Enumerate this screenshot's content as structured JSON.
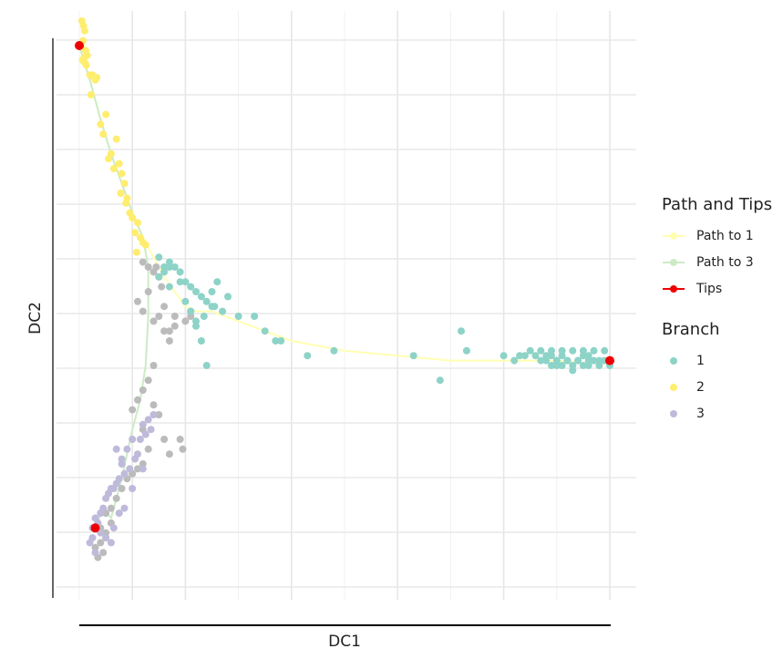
{
  "chart_data": {
    "type": "scatter",
    "xlabel": "DC1",
    "ylabel": "DC2",
    "xlim": [
      -0.05,
      1.05
    ],
    "ylim": [
      -0.05,
      1.05
    ],
    "grid": true,
    "legend_placement": "right",
    "legends": [
      {
        "title": "Path and Tips",
        "items": [
          {
            "label": "Path to 1",
            "color": "#ffffb3"
          },
          {
            "label": "Path to 3",
            "color": "#ccebc5"
          },
          {
            "label": "Tips",
            "color": "#ee0000"
          }
        ]
      },
      {
        "title": "Branch",
        "items": [
          {
            "label": "1",
            "color": "#8dd3c7"
          },
          {
            "label": "2",
            "color": "#ffed6f"
          },
          {
            "label": "3",
            "color": "#bebada"
          }
        ]
      }
    ],
    "colors": {
      "1": "#8dd3c7",
      "2": "#ffed6f",
      "3": "#bebada",
      "unassigned": "#bbbbbb"
    },
    "series": [
      {
        "branch": "2",
        "x": [
          0.005,
          0.008,
          0.01,
          0.007,
          0.012,
          0.003,
          0.015,
          0.009,
          0.006,
          0.011,
          0.013,
          0.025,
          0.028,
          0.02,
          0.03,
          0.033,
          0.022,
          0.05,
          0.04,
          0.045,
          0.07,
          0.06,
          0.055,
          0.075,
          0.065,
          0.08,
          0.085,
          0.078,
          0.088,
          0.09,
          0.095,
          0.1,
          0.11,
          0.105,
          0.115,
          0.12,
          0.108,
          0.125
        ],
        "y": [
          1.05,
          1.04,
          1.03,
          1.01,
          0.99,
          1.0,
          0.98,
          0.975,
          0.97,
          0.965,
          0.96,
          0.94,
          0.935,
          0.94,
          0.93,
          0.935,
          0.9,
          0.86,
          0.84,
          0.82,
          0.81,
          0.78,
          0.77,
          0.76,
          0.75,
          0.74,
          0.72,
          0.7,
          0.68,
          0.69,
          0.66,
          0.65,
          0.64,
          0.62,
          0.61,
          0.6,
          0.58,
          0.595
        ]
      },
      {
        "branch": "1",
        "x": [
          0.15,
          0.16,
          0.17,
          0.18,
          0.19,
          0.2,
          0.21,
          0.22,
          0.23,
          0.24,
          0.25,
          0.27,
          0.3,
          0.33,
          0.35,
          0.37,
          0.21,
          0.22,
          0.235,
          0.255,
          0.28,
          0.23,
          0.24,
          0.17,
          0.19,
          0.2,
          0.17,
          0.21,
          0.22,
          0.15,
          0.16,
          0.25,
          0.26,
          0.38,
          0.43,
          0.48,
          0.63,
          0.68,
          0.73,
          0.72,
          0.8,
          0.82,
          0.84,
          0.86,
          0.87,
          0.88,
          0.89,
          0.9,
          0.91,
          0.92,
          0.93,
          0.94,
          0.95,
          0.96,
          0.97,
          0.98,
          0.99,
          1.0,
          0.87,
          0.89,
          0.91,
          0.93,
          0.95,
          0.97,
          0.99,
          0.88,
          0.9,
          0.92,
          0.94,
          0.96,
          0.98,
          0.85,
          0.83,
          0.9,
          0.95,
          0.96,
          0.93,
          0.91,
          0.89
        ],
        "y": [
          0.53,
          0.54,
          0.56,
          0.55,
          0.54,
          0.52,
          0.51,
          0.5,
          0.49,
          0.48,
          0.47,
          0.46,
          0.45,
          0.45,
          0.42,
          0.4,
          0.46,
          0.44,
          0.45,
          0.47,
          0.49,
          0.4,
          0.35,
          0.51,
          0.52,
          0.48,
          0.55,
          0.46,
          0.43,
          0.57,
          0.55,
          0.5,
          0.52,
          0.4,
          0.37,
          0.38,
          0.37,
          0.32,
          0.38,
          0.42,
          0.37,
          0.36,
          0.37,
          0.37,
          0.36,
          0.37,
          0.35,
          0.36,
          0.37,
          0.36,
          0.35,
          0.36,
          0.35,
          0.37,
          0.36,
          0.35,
          0.36,
          0.35,
          0.38,
          0.38,
          0.38,
          0.38,
          0.38,
          0.38,
          0.38,
          0.36,
          0.36,
          0.36,
          0.36,
          0.36,
          0.36,
          0.38,
          0.37,
          0.35,
          0.37,
          0.35,
          0.34,
          0.35,
          0.37
        ]
      },
      {
        "branch": "3",
        "x": [
          0.12,
          0.13,
          0.14,
          0.125,
          0.135,
          0.115,
          0.1,
          0.11,
          0.09,
          0.105,
          0.095,
          0.08,
          0.085,
          0.075,
          0.07,
          0.065,
          0.06,
          0.055,
          0.05,
          0.045,
          0.04,
          0.03,
          0.035,
          0.025,
          0.02,
          0.025,
          0.03,
          0.04,
          0.05,
          0.06,
          0.065,
          0.075,
          0.085,
          0.1,
          0.12,
          0.07,
          0.08
        ],
        "y": [
          0.23,
          0.24,
          0.25,
          0.21,
          0.22,
          0.2,
          0.2,
          0.17,
          0.18,
          0.16,
          0.14,
          0.15,
          0.13,
          0.12,
          0.11,
          0.1,
          0.1,
          0.09,
          0.08,
          0.06,
          0.05,
          0.04,
          0.03,
          0.0,
          -0.01,
          0.02,
          -0.03,
          0.01,
          0.0,
          -0.01,
          0.02,
          0.05,
          0.06,
          0.1,
          0.14,
          0.18,
          0.16
        ]
      },
      {
        "branch": "unassigned",
        "x": [
          0.12,
          0.13,
          0.14,
          0.15,
          0.145,
          0.155,
          0.16,
          0.13,
          0.11,
          0.12,
          0.14,
          0.15,
          0.16,
          0.17,
          0.18,
          0.2,
          0.21,
          0.18,
          0.17,
          0.12,
          0.13,
          0.14,
          0.11,
          0.1,
          0.12,
          0.14,
          0.15,
          0.16,
          0.13,
          0.17,
          0.19,
          0.195,
          0.12,
          0.11,
          0.1,
          0.09,
          0.08,
          0.07,
          0.06,
          0.05,
          0.06,
          0.04,
          0.05,
          0.03,
          0.04,
          0.035,
          0.045,
          0.05
        ],
        "y": [
          0.56,
          0.55,
          0.54,
          0.53,
          0.55,
          0.51,
          0.47,
          0.5,
          0.48,
          0.46,
          0.44,
          0.45,
          0.42,
          0.42,
          0.43,
          0.44,
          0.45,
          0.45,
          0.4,
          0.3,
          0.32,
          0.35,
          0.28,
          0.26,
          0.22,
          0.27,
          0.25,
          0.2,
          0.18,
          0.17,
          0.2,
          0.18,
          0.15,
          0.14,
          0.13,
          0.12,
          0.1,
          0.08,
          0.06,
          0.05,
          0.03,
          0.02,
          0.0,
          -0.02,
          -0.01,
          -0.04,
          -0.03,
          0.01
        ]
      }
    ],
    "paths": [
      {
        "name": "Path to 1",
        "x": [
          0.0,
          0.02,
          0.04,
          0.06,
          0.08,
          0.1,
          0.12,
          0.14,
          0.16,
          0.18,
          0.2,
          0.22,
          0.25,
          0.3,
          0.35,
          0.4,
          0.5,
          0.6,
          0.7,
          0.8,
          0.85,
          0.9,
          0.95,
          1.0
        ],
        "y": [
          1.0,
          0.93,
          0.85,
          0.78,
          0.72,
          0.66,
          0.61,
          0.57,
          0.53,
          0.5,
          0.47,
          0.46,
          0.46,
          0.44,
          0.42,
          0.4,
          0.38,
          0.37,
          0.36,
          0.36,
          0.36,
          0.36,
          0.355,
          0.36
        ]
      },
      {
        "name": "Path to 3",
        "x": [
          0.0,
          0.02,
          0.04,
          0.06,
          0.08,
          0.1,
          0.12,
          0.13,
          0.13,
          0.125,
          0.115,
          0.1,
          0.09,
          0.08,
          0.07,
          0.06,
          0.045,
          0.03
        ],
        "y": [
          1.0,
          0.93,
          0.85,
          0.78,
          0.72,
          0.66,
          0.61,
          0.55,
          0.45,
          0.35,
          0.28,
          0.22,
          0.17,
          0.12,
          0.08,
          0.04,
          0.06,
          0.02
        ]
      }
    ],
    "tips": {
      "x": [
        0.0,
        1.0,
        0.03
      ],
      "y": [
        1.0,
        0.36,
        0.02
      ]
    }
  }
}
